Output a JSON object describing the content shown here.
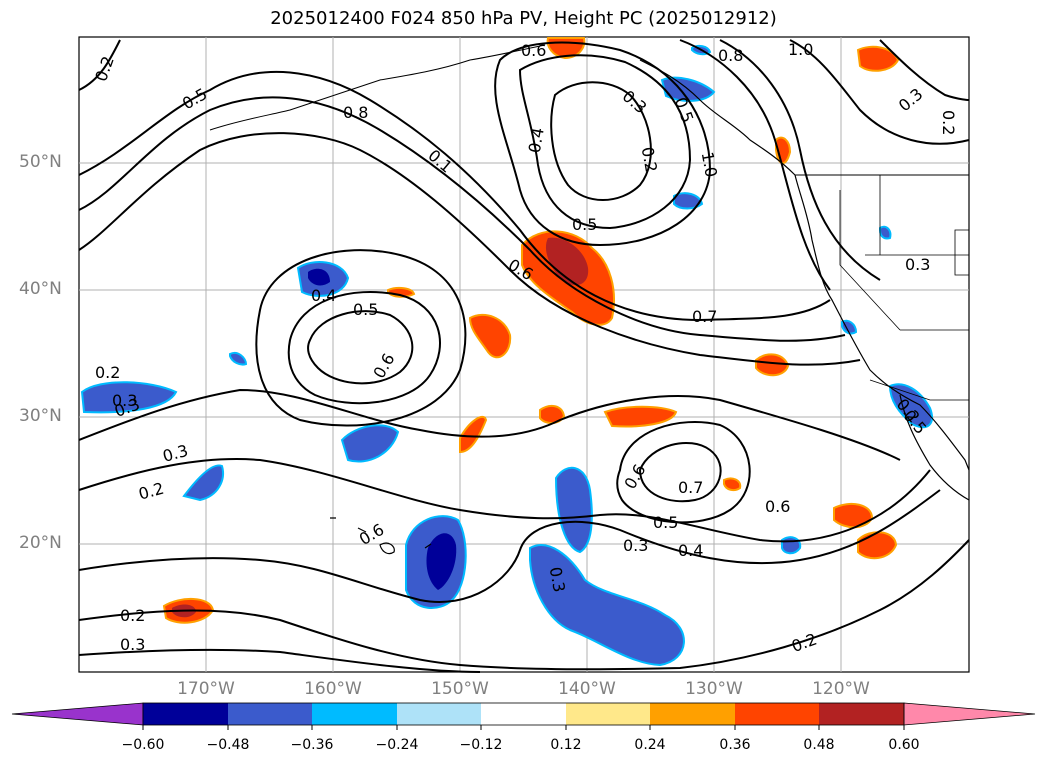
{
  "title": "2025012400 F024 850 hPa PV, Height PC (2025012912)",
  "lat_labels": [
    "50°N",
    "40°N",
    "30°N",
    "20°N"
  ],
  "lon_labels": [
    "170°W",
    "160°W",
    "150°W",
    "140°W",
    "130°W",
    "120°W"
  ],
  "contour_labels": [
    "0.2",
    "0.5",
    "0.8",
    "0.1",
    "0.6",
    "0.4",
    "0.3",
    "0.2",
    "0.5",
    "0.6",
    "0.8",
    "1.0",
    "0.3",
    "0.2",
    "1.0",
    "0.5",
    "0.6",
    "0.4",
    "0.5",
    "0.6",
    "0.7",
    "0.3",
    "0.2",
    "0.3",
    "0.2",
    "0.3",
    "0.6",
    "0.7",
    "0.5",
    "0.6",
    "0.3",
    "0.4",
    "0.2",
    "0.3",
    "0.2",
    "0.3",
    "0.2",
    "0.5",
    "0.3"
  ],
  "colorbar": {
    "ticks": [
      "−0.60",
      "−0.48",
      "−0.36",
      "−0.24",
      "−0.12",
      "0.12",
      "0.24",
      "0.36",
      "0.48",
      "0.60"
    ],
    "colors": [
      "#9933cc",
      "#000099",
      "#3b5bcc",
      "#00bbff",
      "#aee2f8",
      "#ffffff",
      "#ffe88a",
      "#ffa000",
      "#ff4400",
      "#b22222",
      "#ff88aa"
    ]
  }
}
